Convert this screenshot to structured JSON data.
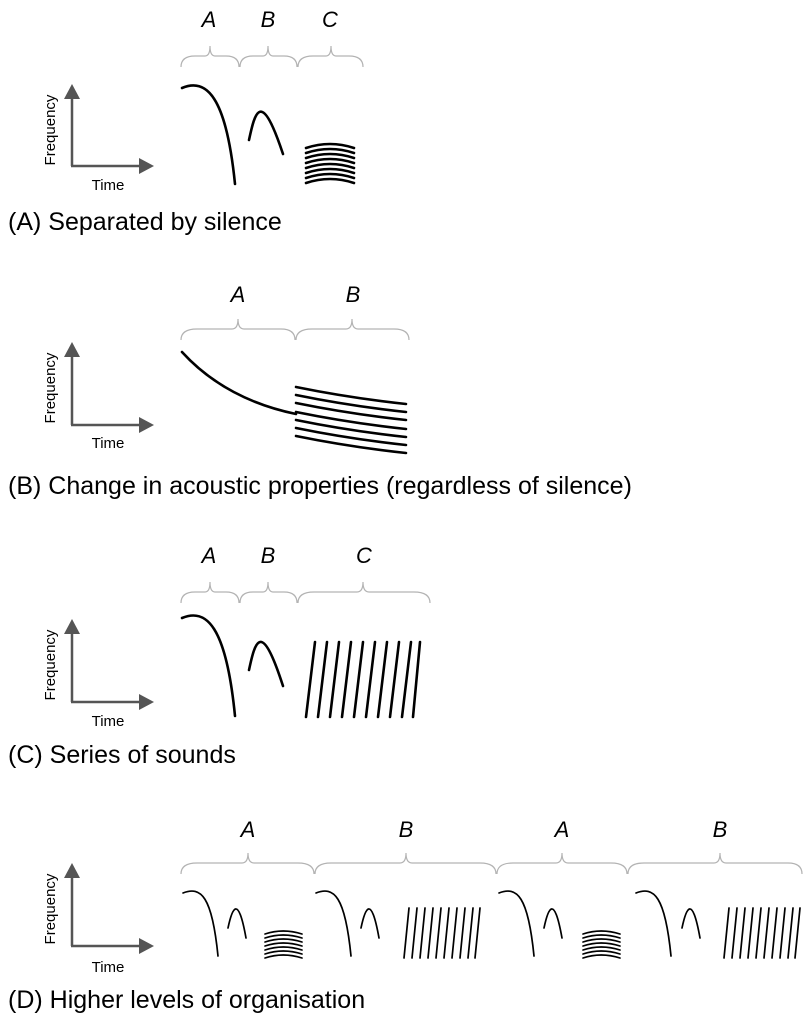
{
  "axes": {
    "y_label": "Frequency",
    "x_label": "Time"
  },
  "panels": [
    {
      "id": "A",
      "caption": "(A) Separated by silence",
      "segments": [
        "A",
        "B",
        "C"
      ]
    },
    {
      "id": "B",
      "caption": "(B) Change in acoustic properties (regardless of silence)",
      "segments": [
        "A",
        "B"
      ]
    },
    {
      "id": "C",
      "caption": "(C) Series of sounds",
      "segments": [
        "A",
        "B",
        "C"
      ]
    },
    {
      "id": "D",
      "caption": "(D) Higher levels of organisation",
      "segments": [
        "A",
        "B",
        "A",
        "B"
      ]
    }
  ],
  "colors": {
    "axis": "#555555",
    "brace": "#b3b3b3",
    "sound": "#000000"
  }
}
